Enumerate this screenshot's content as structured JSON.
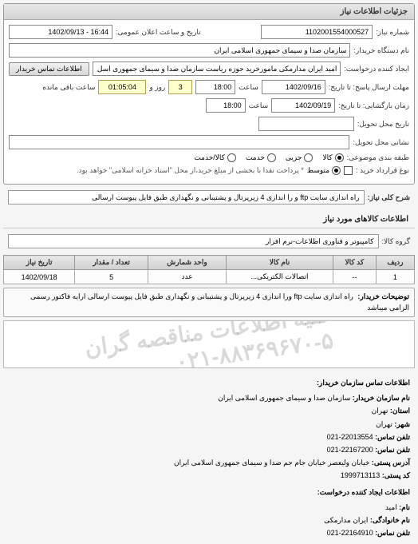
{
  "panel_title": "جزئیات اطلاعات نیاز",
  "f": {
    "req_no_lbl": "شماره نیاز:",
    "req_no": "1102001554000527",
    "ann_lbl": "تاریخ و ساعت اعلان عمومی:",
    "ann_val": "16:44 - 1402/09/13",
    "buyer_lbl": "نام دستگاه خریدار:",
    "buyer": "سازمان صدا و سیمای جمهوری اسلامی ایران",
    "creator_lbl": "ایجاد کننده درخواست:",
    "creator": "امید ایران مدارمکی مامورخرید حوزه ریاست سازمان صدا و سیمای جمهوری اسل",
    "contact_btn": "اطلاعات تماس خریدار",
    "deadline_to_lbl": "مهلت ارسال پاسخ: تا تاریخ:",
    "deadline_date": "1402/09/16",
    "time_lbl": "ساعت",
    "deadline_time": "18:00",
    "days_left": "3",
    "days_lbl": "روز و",
    "remain_time": "01:05:04",
    "remain_lbl": "ساعت باقی مانده",
    "dist_to_lbl": "زمان بازگشایی: تا تاریخ:",
    "dist_date": "1402/09/19",
    "dist_time": "18:00",
    "est_lbl": "تاریخ محل تحویل:",
    "place_lbl": "نشانی محل تحویل:",
    "type_lbl": "طبقه بندی موضوعی:",
    "r1": "کالا",
    "r2": "جزیی",
    "r3": "خدمت",
    "r4": "کالا/خدمت",
    "pay_lbl": "نوع قرارداد خرید :",
    "p1": "متوسط",
    "pay_note": "* پرداخت نقدا با بخشی از مبلغ خرید،از محل \"اسناد خزانه اسلامی\" خواهد بود.",
    "chk_lbl": ""
  },
  "desc": {
    "title_lbl": "شرح کلی نیاز:",
    "title_val": "راه اندازی سایت ftp و را اندازی 4 زیرپرتال و پشتیبانی و نگهداری طبق فایل پیوست ارسالی",
    "items_hdr": "اطلاعات کالاهای مورد نیاز",
    "group_lbl": "گروه کالا:",
    "group_val": "کامپیوتر و فناوری اطلاعات-نرم افزار"
  },
  "table": {
    "cols": [
      "ردیف",
      "کد کالا",
      "نام کالا",
      "واحد شمارش",
      "تعداد / مقدار",
      "تاریخ نیاز"
    ],
    "rows": [
      [
        "1",
        "--",
        "اتصالات الکتریکی...",
        "عدد",
        "5",
        "1402/09/18"
      ]
    ]
  },
  "buyer_note": {
    "lbl": "توضیحات خریدار:",
    "txt": "راه اندازی سایت ftp ورا اندازی 4 زیرپرتال و پشتیبانی و نگهداری طبق فایل پیوست ارسالی ارایه فاکتور رسمی الزامی میباشد"
  },
  "wm": {
    "line1": "کلیه اطلاعات مناقصه گران",
    "line2": "۰۲۱-۸۸۳۶۹۶۷۰-۵"
  },
  "contact": {
    "hdr": "اطلاعات تماس سازمان خریدار:",
    "org_lbl": "نام سازمان خریدار:",
    "org": "سازمان صدا و سیمای جمهوری اسلامی ایران",
    "prov_lbl": "استان:",
    "prov": "تهران",
    "city_lbl": "شهر:",
    "city": "تهران",
    "tel_lbl": "تلفن تماس:",
    "tel": "22013554-021",
    "fax_lbl": "تلفن نماس:",
    "fax": "22167200-021",
    "addr_lbl": "آدرس پستی:",
    "addr": "خیابان ولیعصر خیابان جام جم صدا و سیمای جمهوری اسلامی ایران",
    "post_lbl": "کد پستی:",
    "post": "1999713113",
    "hdr2": "اطلاعات ایجاد کننده درخواست:",
    "name_lbl": "نام:",
    "name": "امید",
    "fam_lbl": "نام خانوادگی:",
    "fam": "ایران مدارمکی",
    "tel2_lbl": "تلفن نماس:",
    "tel2": "22164910-021"
  }
}
